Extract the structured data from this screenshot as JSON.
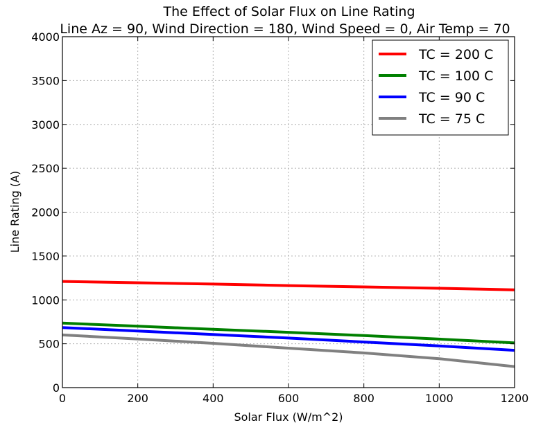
{
  "chart_data": {
    "type": "line",
    "title": "The Effect of Solar Flux on Line Rating",
    "subtitle": "Line Az = 90, Wind Direction = 180, Wind Speed = 0, Air Temp = 70",
    "xlabel": "Solar Flux (W/m^2)",
    "ylabel": "Line Rating (A)",
    "xlim": [
      0,
      1200
    ],
    "ylim": [
      0,
      4000
    ],
    "x_ticks": [
      0,
      200,
      400,
      600,
      800,
      1000,
      1200
    ],
    "y_ticks": [
      0,
      500,
      1000,
      1500,
      2000,
      2500,
      3000,
      3500,
      4000
    ],
    "grid": true,
    "legend_position": "top-right",
    "x": [
      0,
      200,
      400,
      600,
      800,
      1000,
      1200
    ],
    "series": [
      {
        "name": "TC = 200 C",
        "color": "#ff0000",
        "values": [
          1210,
          1195,
          1180,
          1163,
          1148,
          1132,
          1115
        ]
      },
      {
        "name": "TC = 100 C",
        "color": "#008000",
        "values": [
          735,
          700,
          665,
          630,
          593,
          553,
          510
        ]
      },
      {
        "name": "TC = 90 C",
        "color": "#0000ff",
        "values": [
          685,
          645,
          605,
          565,
          520,
          475,
          425
        ]
      },
      {
        "name": "TC = 75 C",
        "color": "#808080",
        "values": [
          600,
          555,
          505,
          450,
          395,
          330,
          240
        ]
      }
    ]
  }
}
